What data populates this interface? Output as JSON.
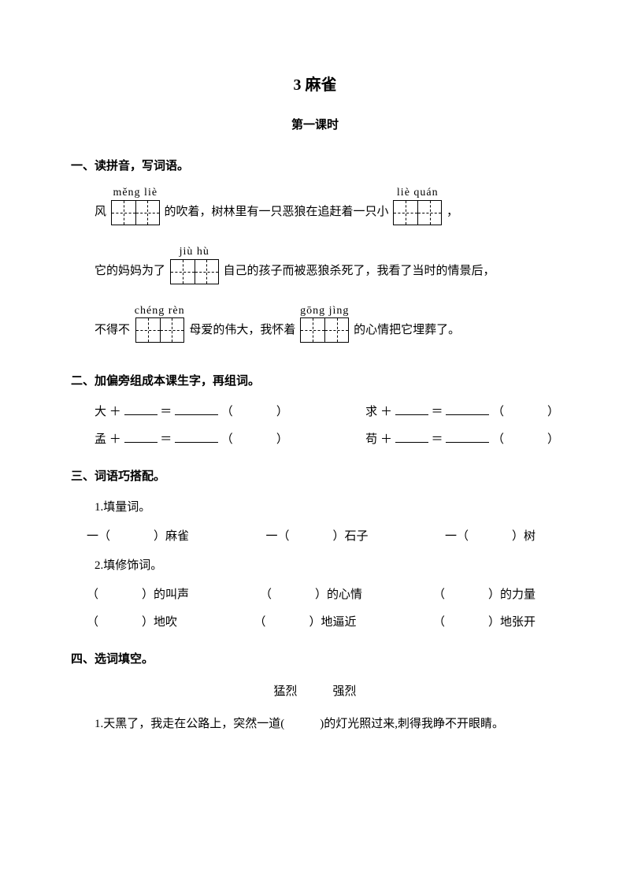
{
  "title": "3  麻雀",
  "subtitle": "第一课时",
  "s1": {
    "heading": "一、读拼音，写词语。",
    "t1a": "风",
    "p1": "měng liè",
    "t1b": "的吹着，树林里有一只恶狼在追赶着一只小",
    "p2": "liè quán",
    "t1c": "，",
    "t2a": "它的妈妈为了",
    "p3": "jiù  hù",
    "t2b": "自己的孩子而被恶狼杀死了，我看了当时的情景后，",
    "t3a": "不得不",
    "p4": "chéng rèn",
    "t3b": "母爱的伟大，我怀着",
    "p5": "gōng jìng",
    "t3c": "的心情把它埋葬了。"
  },
  "s2": {
    "heading": "二、加偏旁组成本课生字，再组词。",
    "items": [
      {
        "base": "大",
        "op": "＋",
        "eq": "＝"
      },
      {
        "base": "求",
        "op": "＋",
        "eq": "＝"
      },
      {
        "base": "孟",
        "op": "＋",
        "eq": "＝"
      },
      {
        "base": "苟",
        "op": "＋",
        "eq": "＝"
      }
    ]
  },
  "s3": {
    "heading": "三、词语巧搭配。",
    "sub1": "1.填量词。",
    "q1a": "一（",
    "q1aw": "）麻雀",
    "q1b": "一（",
    "q1bw": "）石子",
    "q1c": "一（",
    "q1cw": "）树",
    "sub2": "2.填修饰词。",
    "r1a": "（",
    "r1aw": "）的叫声",
    "r1b": "（",
    "r1bw": "）的心情",
    "r1c": "（",
    "r1cw": "）的力量",
    "r2a": "（",
    "r2aw": "）地吹",
    "r2b": "（",
    "r2bw": "）地逼近",
    "r2c": "（",
    "r2cw": "）地张开"
  },
  "s4": {
    "heading": "四、选词填空。",
    "words": "猛烈　　　强烈",
    "q1": "1.天黑了，我走在公路上，突然一道(　　　)的灯光照过来,刺得我睁不开眼睛。"
  }
}
